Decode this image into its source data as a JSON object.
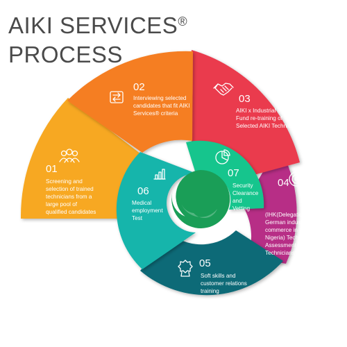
{
  "title": {
    "line1": "AIKI SERVICES",
    "reg": "®",
    "line2": "PROCESS"
  },
  "steps": [
    {
      "number": "01",
      "lines": [
        "Screening and",
        "selection of trained",
        "technicians from a",
        "large pool of",
        "qualified candidates"
      ],
      "color": "#f5a623",
      "icon": "team-icon"
    },
    {
      "number": "02",
      "lines": [
        "Interviewing selected",
        "candidates that fit AIKI",
        "Services® criteria"
      ],
      "color": "#f47b20",
      "icon": "exchange-arrows-icon"
    },
    {
      "number": "03",
      "lines": [
        "AIKI x Industrial Training",
        "Fund re-training of",
        "Selected AIKI Technicians®"
      ],
      "color": "#ea3a4d",
      "icon": "handshake-icon"
    },
    {
      "number": "04",
      "lines": [
        "(IHK(Delegation of",
        "German industry and",
        "commerce in",
        "Nigeria) Technical",
        "Assessment of AIKI",
        "Technicians®"
      ],
      "color": "#b72e86",
      "icon": "target-icon"
    },
    {
      "number": "05",
      "lines": [
        "Soft skills and",
        "customer relations",
        "training"
      ],
      "color": "#0e6f7a",
      "icon": "award-badge-icon"
    },
    {
      "number": "06",
      "lines": [
        "Medical",
        "employment",
        "Test"
      ],
      "color": "#16b9ad",
      "icon": "bar-chart-icon"
    },
    {
      "number": "07",
      "lines": [
        "Security",
        "Clearance",
        "and",
        "Vetting"
      ],
      "color": "#16c78e",
      "icon": "pie-chart-icon"
    }
  ],
  "center": {
    "color": "#1a9e57",
    "icon": "spiral-swirl-icon"
  }
}
